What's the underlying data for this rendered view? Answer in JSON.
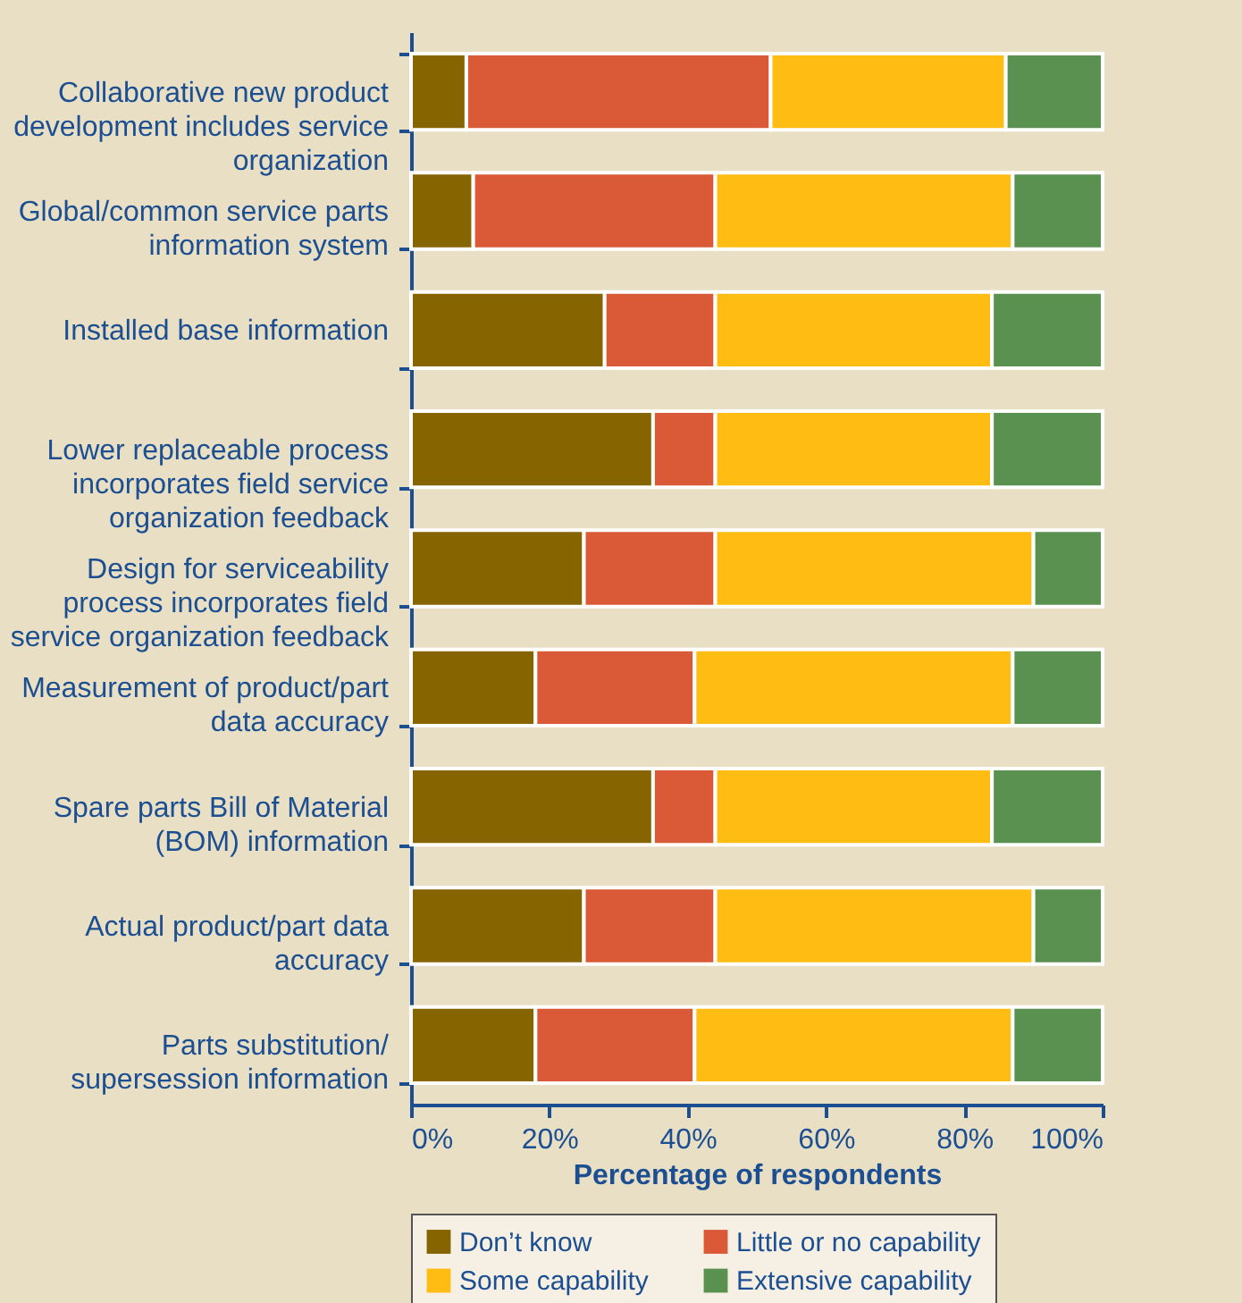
{
  "chart_data": {
    "type": "bar",
    "orientation": "horizontal",
    "stacked": true,
    "xlabel": "Percentage of respondents",
    "categories": [
      "Collaborative new product development includes service organization",
      "Global/common service parts information system",
      "Installed base information",
      "Lower replaceable process incorporates field service organization feedback",
      "Design for serviceability process incorporates field service organization feedback",
      "Measurement of product/part data accuracy",
      "Spare parts Bill of Material (BOM) information",
      "Actual product/part data accuracy",
      "Parts substitution/ supersession information"
    ],
    "series": [
      {
        "name": "Don’t know",
        "color": "#866400",
        "values": [
          8,
          9,
          28,
          35,
          25,
          18,
          35,
          25,
          18
        ]
      },
      {
        "name": "Little or no capability",
        "color": "#da5a37",
        "values": [
          44,
          35,
          16,
          9,
          19,
          23,
          9,
          19,
          23
        ]
      },
      {
        "name": "Some capability",
        "color": "#ffbc13",
        "values": [
          34,
          43,
          40,
          40,
          46,
          46,
          40,
          46,
          46
        ]
      },
      {
        "name": "Extensive capability",
        "color": "#5b9150",
        "values": [
          14,
          13,
          16,
          16,
          10,
          13,
          16,
          10,
          13
        ]
      }
    ],
    "xlim": [
      0,
      100
    ],
    "xticks": [
      {
        "value": 0,
        "label": "0%"
      },
      {
        "value": 20,
        "label": "20%"
      },
      {
        "value": 40,
        "label": "40%"
      },
      {
        "value": 60,
        "label": "60%"
      },
      {
        "value": 80,
        "label": "80%"
      },
      {
        "value": 100,
        "label": "100%"
      }
    ],
    "legend": "bottom",
    "grid": false
  }
}
